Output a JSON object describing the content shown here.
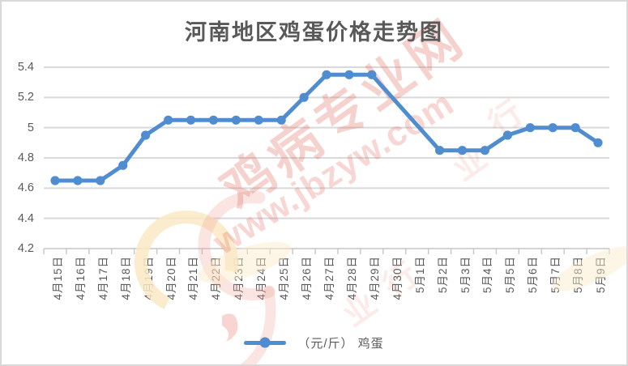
{
  "title": "河南地区鸡蛋价格走势图",
  "watermark": {
    "brand_text": "鸡病专业网",
    "url_text": "www.jbzyw.com",
    "faint_glyphs": [
      "行",
      "业"
    ],
    "color": "#e26a60"
  },
  "legend": {
    "label": "（元/斤） 鸡蛋"
  },
  "chart_data": {
    "type": "line",
    "title": "河南地区鸡蛋价格走势图",
    "categories": [
      "4月15日",
      "4月16日",
      "4月17日",
      "4月18日",
      "4月19日",
      "4月20日",
      "4月21日",
      "4月22日",
      "4月23日",
      "4月24日",
      "4月25日",
      "4月26日",
      "4月27日",
      "4月28日",
      "4月29日",
      "4月30日",
      "5月1日",
      "5月2日",
      "5月3日",
      "5月4日",
      "5月5日",
      "5月6日",
      "5月7日",
      "5月8日",
      "5月9日"
    ],
    "series": [
      {
        "name": "（元/斤） 鸡蛋",
        "values": [
          4.65,
          4.65,
          4.65,
          4.75,
          4.95,
          5.05,
          5.05,
          5.05,
          5.05,
          5.05,
          5.05,
          5.2,
          5.35,
          5.35,
          5.35,
          null,
          null,
          4.85,
          4.85,
          4.85,
          4.95,
          5.0,
          5.0,
          5.0,
          4.9
        ]
      }
    ],
    "note": "no markers for 4月30日 and 5月1日; line connects straight across the gap",
    "ylim": [
      4.2,
      5.4
    ],
    "ytick_interval": 0.2,
    "yticks": [
      5.4,
      5.2,
      5.0,
      4.8,
      4.6,
      4.4,
      4.2
    ],
    "ytick_labels": [
      "5.4",
      "5.2",
      "5",
      "4.8",
      "4.6",
      "4.4",
      "4.2"
    ],
    "xlabel": "",
    "ylabel": "",
    "grid": true,
    "legend_position": "bottom",
    "line_color": "#4f8dd0",
    "grid_color": "#d9d9d9",
    "axis_color": "#c6c6c6",
    "label_color": "#595959"
  }
}
